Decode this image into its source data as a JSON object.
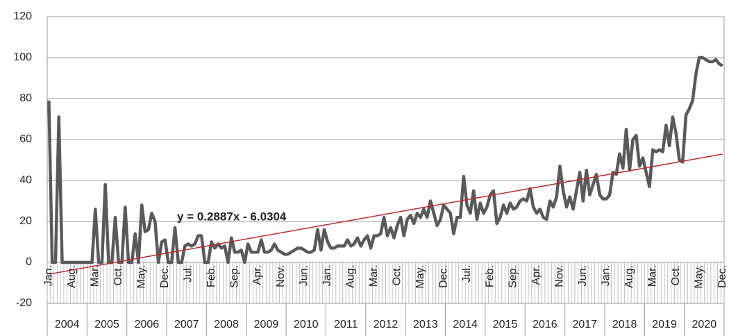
{
  "chart_data": {
    "type": "line",
    "categories": [
      "Jan.",
      null,
      null,
      null,
      null,
      null,
      null,
      "Aug.",
      null,
      null,
      null,
      null,
      null,
      null,
      "Mar.",
      null,
      null,
      null,
      null,
      null,
      null,
      "Oct.",
      null,
      null,
      null,
      null,
      null,
      null,
      "May.",
      null,
      null,
      null,
      null,
      null,
      null,
      "Dec.",
      null,
      null,
      null,
      null,
      null,
      null,
      "Jul.",
      null,
      null,
      null,
      null,
      null,
      null,
      "Feb.",
      null,
      null,
      null,
      null,
      null,
      null,
      "Sep.",
      null,
      null,
      null,
      null,
      null,
      null,
      "Apr.",
      null,
      null,
      null,
      null,
      null,
      null,
      "Nov.",
      null,
      null,
      null,
      null,
      null,
      null,
      "Jun.",
      null,
      null,
      null,
      null,
      null,
      null,
      "Jan.",
      null,
      null,
      null,
      null,
      null,
      null,
      "Aug.",
      null,
      null,
      null,
      null,
      null,
      null,
      "Mar.",
      null,
      null,
      null,
      null,
      null,
      null,
      "Oct.",
      null,
      null,
      null,
      null,
      null,
      null,
      "May.",
      null,
      null,
      null,
      null,
      null,
      null,
      "Dec.",
      null,
      null,
      null,
      null,
      null,
      null,
      "Jul.",
      null,
      null,
      null,
      null,
      null,
      null,
      "Feb.",
      null,
      null,
      null,
      null,
      null,
      null,
      "Sep.",
      null,
      null,
      null,
      null,
      null,
      null,
      "Apr.",
      null,
      null,
      null,
      null,
      null,
      null,
      "Nov.",
      null,
      null,
      null,
      null,
      null,
      null,
      "Jun.",
      null,
      null,
      null,
      null,
      null,
      null,
      "Jan.",
      null,
      null,
      null,
      null,
      null,
      null,
      "Aug.",
      null,
      null,
      null,
      null,
      null,
      null,
      "Mar.",
      null,
      null,
      null,
      null,
      null,
      null,
      "Oct.",
      null,
      null,
      null,
      null,
      null,
      null,
      "May.",
      null,
      null,
      null,
      null,
      null,
      null,
      "Dec."
    ],
    "year_groups": [
      "2004",
      "2005",
      "2006",
      "2007",
      "2008",
      "2009",
      "2010",
      "2011",
      "2012",
      "2013",
      "2014",
      "2015",
      "2016",
      "2017",
      "2018",
      "2019",
      "2020"
    ],
    "values": [
      79,
      0,
      0,
      71,
      0,
      0,
      0,
      0,
      0,
      0,
      0,
      0,
      0,
      0,
      26,
      0,
      0,
      38,
      0,
      0,
      22,
      0,
      0,
      27,
      0,
      0,
      14,
      0,
      28,
      15,
      16,
      24,
      20,
      0,
      10,
      11,
      0,
      0,
      17,
      0,
      0,
      8,
      9,
      8,
      9,
      13,
      13,
      0,
      0,
      10,
      7,
      9,
      7,
      8,
      0,
      12,
      5,
      5,
      6,
      0,
      9,
      5,
      5,
      5,
      11,
      5,
      5,
      6,
      9,
      6,
      5,
      4,
      4,
      5,
      6,
      7,
      7,
      6,
      5,
      5,
      6,
      16,
      6,
      16,
      10,
      7,
      7,
      8,
      8,
      8,
      11,
      8,
      9,
      12,
      8,
      11,
      13,
      7,
      13,
      13,
      14,
      22,
      13,
      17,
      12,
      18,
      22,
      13,
      21,
      23,
      19,
      24,
      22,
      26,
      22,
      30,
      24,
      18,
      21,
      28,
      26,
      24,
      14,
      22,
      22,
      42,
      28,
      24,
      35,
      21,
      29,
      24,
      27,
      33,
      35,
      19,
      22,
      28,
      24,
      29,
      26,
      27,
      30,
      31,
      30,
      36,
      27,
      24,
      26,
      22,
      21,
      30,
      27,
      32,
      47,
      35,
      27,
      32,
      26,
      35,
      44,
      30,
      45,
      33,
      38,
      43,
      33,
      31,
      31,
      33,
      44,
      43,
      53,
      46,
      65,
      45,
      60,
      62,
      47,
      51,
      44,
      37,
      55,
      54,
      55,
      54,
      67,
      57,
      71,
      63,
      50,
      49,
      72,
      75,
      79,
      92,
      100,
      100,
      99,
      98,
      98,
      99,
      97,
      96
    ],
    "color": "#5a5a5a",
    "trendline": {
      "label": "y = 0.2887x - 6.0304",
      "slope": 0.2887,
      "intercept": -6.0304,
      "color": "#c0282d"
    },
    "ylim": [
      -20,
      120
    ],
    "yticks": [
      -20,
      0,
      20,
      40,
      60,
      80,
      100,
      120
    ],
    "grid": true
  }
}
